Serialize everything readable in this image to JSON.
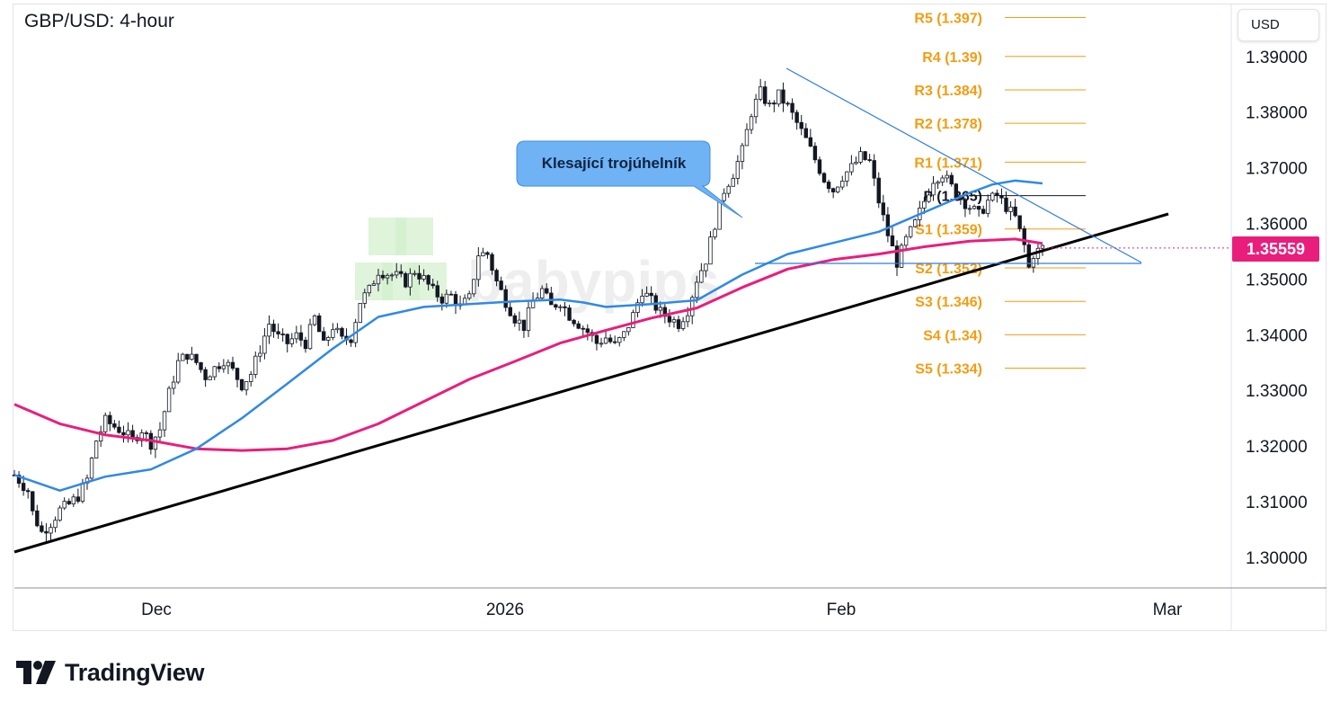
{
  "header": {
    "title": "GBP/USD: 4-hour"
  },
  "currency_button": {
    "label": "USD"
  },
  "last_price": {
    "label": "1.35559",
    "color": "#e91e7c"
  },
  "annotation": {
    "text": "Klesající trojúhelník"
  },
  "watermark": {
    "text": "babypips"
  },
  "footer": {
    "brand": "TradingView"
  },
  "colors": {
    "up": "#131722",
    "down": "#131722",
    "ma_fast": "#2e89e6",
    "ma_slow": "#e91e7c",
    "pivots": "#f39c12",
    "trendline": "#000000",
    "triangle": "#2e7de0",
    "callout_fill": "#6fb3f5"
  },
  "chart_data": {
    "type": "candlestick",
    "symbol": "GBP/USD",
    "timeframe": "4-hour",
    "y_axis": {
      "ticks": [
        1.3,
        1.31,
        1.32,
        1.33,
        1.34,
        1.35,
        1.36,
        1.37,
        1.38,
        1.39
      ],
      "tick_labels": [
        "1.30000",
        "1.31000",
        "1.32000",
        "1.33000",
        "1.34000",
        "1.35000",
        "1.36000",
        "1.37000",
        "1.38000",
        "1.39000"
      ],
      "range": [
        1.2945,
        1.3995
      ]
    },
    "x_axis": {
      "labels": [
        "Dec",
        "2026",
        "Feb",
        "Mar"
      ]
    },
    "last_price": 1.35559,
    "pivot_levels": [
      {
        "label": "R5 (1.397)",
        "value": 1.397
      },
      {
        "label": "R4 (1.39)",
        "value": 1.39
      },
      {
        "label": "R3 (1.384)",
        "value": 1.384
      },
      {
        "label": "R2 (1.378)",
        "value": 1.378
      },
      {
        "label": "R1 (1.371)",
        "value": 1.371
      },
      {
        "label": "P (1.365)",
        "value": 1.365
      },
      {
        "label": "S1 (1.359)",
        "value": 1.359
      },
      {
        "label": "S2 (1.352)",
        "value": 1.352
      },
      {
        "label": "S3 (1.346)",
        "value": 1.346
      },
      {
        "label": "S4 (1.34)",
        "value": 1.34
      },
      {
        "label": "S5 (1.334)",
        "value": 1.334
      }
    ],
    "series": [
      {
        "name": "GBP/USD",
        "close_path": [
          [
            0,
            1.3148
          ],
          [
            3,
            1.312
          ],
          [
            4,
            1.308
          ],
          [
            6,
            1.3045
          ],
          [
            8,
            1.3062
          ],
          [
            10,
            1.3085
          ],
          [
            12,
            1.3095
          ],
          [
            14,
            1.311
          ],
          [
            16,
            1.314
          ],
          [
            18,
            1.321
          ],
          [
            20,
            1.3245
          ],
          [
            22,
            1.3235
          ],
          [
            24,
            1.3225
          ],
          [
            26,
            1.321
          ],
          [
            28,
            1.323
          ],
          [
            30,
            1.3205
          ],
          [
            32,
            1.323
          ],
          [
            34,
            1.3295
          ],
          [
            36,
            1.335
          ],
          [
            38,
            1.3365
          ],
          [
            40,
            1.335
          ],
          [
            42,
            1.3325
          ],
          [
            44,
            1.334
          ],
          [
            46,
            1.3355
          ],
          [
            48,
            1.3335
          ],
          [
            50,
            1.331
          ],
          [
            52,
            1.333
          ],
          [
            54,
            1.3375
          ],
          [
            56,
            1.342
          ],
          [
            58,
            1.3395
          ],
          [
            60,
            1.3385
          ],
          [
            62,
            1.3398
          ],
          [
            64,
            1.3385
          ],
          [
            66,
            1.343
          ],
          [
            68,
            1.338
          ],
          [
            70,
            1.3415
          ],
          [
            72,
            1.339
          ],
          [
            74,
            1.3395
          ],
          [
            76,
            1.346
          ],
          [
            78,
            1.348
          ],
          [
            80,
            1.3515
          ],
          [
            82,
            1.351
          ],
          [
            84,
            1.3505
          ],
          [
            86,
            1.3495
          ],
          [
            88,
            1.3515
          ],
          [
            90,
            1.35
          ],
          [
            92,
            1.3478
          ],
          [
            94,
            1.3465
          ],
          [
            96,
            1.347
          ],
          [
            98,
            1.345
          ],
          [
            100,
            1.3465
          ],
          [
            102,
            1.3545
          ],
          [
            104,
            1.3545
          ],
          [
            106,
            1.3495
          ],
          [
            108,
            1.346
          ],
          [
            110,
            1.343
          ],
          [
            112,
            1.3415
          ],
          [
            114,
            1.346
          ],
          [
            116,
            1.348
          ],
          [
            118,
            1.345
          ],
          [
            120,
            1.346
          ],
          [
            122,
            1.3435
          ],
          [
            124,
            1.342
          ],
          [
            126,
            1.3405
          ],
          [
            128,
            1.3385
          ],
          [
            130,
            1.3395
          ],
          [
            132,
            1.338
          ],
          [
            134,
            1.34
          ],
          [
            136,
            1.3435
          ],
          [
            138,
            1.348
          ],
          [
            140,
            1.346
          ],
          [
            142,
            1.344
          ],
          [
            144,
            1.343
          ],
          [
            146,
            1.342
          ],
          [
            148,
            1.3445
          ],
          [
            150,
            1.35
          ],
          [
            152,
            1.3535
          ],
          [
            154,
            1.36
          ],
          [
            156,
            1.366
          ],
          [
            158,
            1.369
          ],
          [
            160,
            1.373
          ],
          [
            162,
            1.38
          ],
          [
            164,
            1.3835
          ],
          [
            166,
            1.381
          ],
          [
            168,
            1.383
          ],
          [
            170,
            1.381
          ],
          [
            172,
            1.378
          ],
          [
            174,
            1.375
          ],
          [
            176,
            1.3715
          ],
          [
            178,
            1.368
          ],
          [
            180,
            1.366
          ],
          [
            182,
            1.3685
          ],
          [
            184,
            1.37
          ],
          [
            186,
            1.372
          ],
          [
            188,
            1.371
          ],
          [
            190,
            1.364
          ],
          [
            192,
            1.358
          ],
          [
            194,
            1.353
          ],
          [
            196,
            1.357
          ],
          [
            198,
            1.36
          ],
          [
            200,
            1.364
          ],
          [
            202,
            1.368
          ],
          [
            204,
            1.369
          ],
          [
            206,
            1.3665
          ],
          [
            208,
            1.3645
          ],
          [
            210,
            1.363
          ],
          [
            212,
            1.3615
          ],
          [
            214,
            1.364
          ],
          [
            216,
            1.365
          ],
          [
            218,
            1.363
          ],
          [
            220,
            1.361
          ],
          [
            222,
            1.356
          ],
          [
            223,
            1.352
          ],
          [
            224,
            1.3545
          ],
          [
            226,
            1.3556
          ]
        ],
        "bars_count": 227
      },
      {
        "name": "MA fast",
        "points": [
          [
            0,
            1.3148
          ],
          [
            10,
            1.312
          ],
          [
            20,
            1.3145
          ],
          [
            30,
            1.3158
          ],
          [
            40,
            1.3195
          ],
          [
            50,
            1.325
          ],
          [
            60,
            1.3312
          ],
          [
            70,
            1.3375
          ],
          [
            80,
            1.3432
          ],
          [
            90,
            1.345
          ],
          [
            100,
            1.3455
          ],
          [
            110,
            1.346
          ],
          [
            120,
            1.3463
          ],
          [
            125,
            1.3458
          ],
          [
            130,
            1.345
          ],
          [
            140,
            1.3455
          ],
          [
            150,
            1.3462
          ],
          [
            160,
            1.3508
          ],
          [
            170,
            1.3545
          ],
          [
            180,
            1.3565
          ],
          [
            190,
            1.3585
          ],
          [
            200,
            1.362
          ],
          [
            210,
            1.3655
          ],
          [
            215,
            1.367
          ],
          [
            220,
            1.3677
          ],
          [
            226,
            1.3672
          ]
        ]
      },
      {
        "name": "MA slow",
        "points": [
          [
            0,
            1.3275
          ],
          [
            10,
            1.324
          ],
          [
            20,
            1.322
          ],
          [
            30,
            1.321
          ],
          [
            40,
            1.3195
          ],
          [
            50,
            1.3192
          ],
          [
            60,
            1.3195
          ],
          [
            70,
            1.321
          ],
          [
            80,
            1.324
          ],
          [
            90,
            1.328
          ],
          [
            100,
            1.332
          ],
          [
            110,
            1.3352
          ],
          [
            120,
            1.3385
          ],
          [
            130,
            1.3408
          ],
          [
            140,
            1.343
          ],
          [
            150,
            1.3448
          ],
          [
            160,
            1.3485
          ],
          [
            170,
            1.3518
          ],
          [
            180,
            1.3535
          ],
          [
            190,
            1.3545
          ],
          [
            200,
            1.3558
          ],
          [
            210,
            1.3568
          ],
          [
            220,
            1.3572
          ],
          [
            226,
            1.3564
          ]
        ]
      }
    ]
  }
}
